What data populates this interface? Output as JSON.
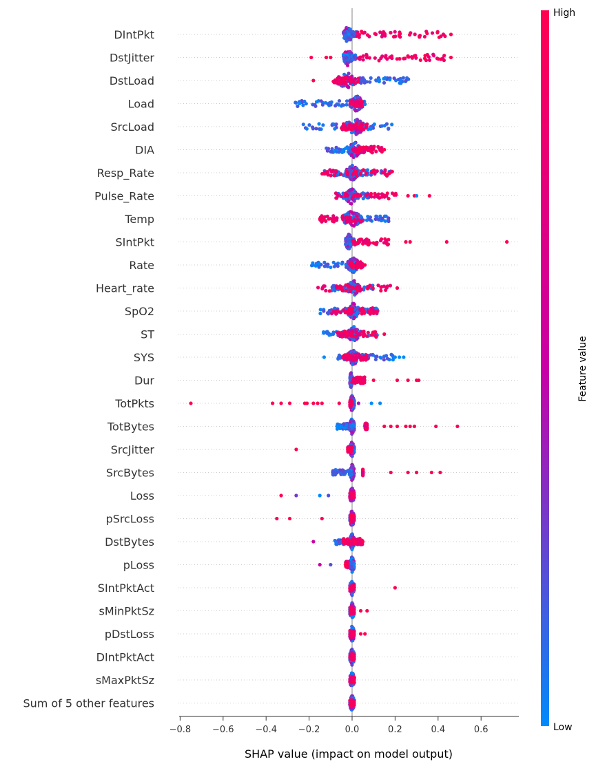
{
  "chart_data": {
    "type": "beeswarm",
    "xlabel": "SHAP value (impact on model output)",
    "xlim": [
      -0.83,
      0.8
    ],
    "xticks": [
      -0.8,
      -0.6,
      -0.4,
      -0.2,
      0.0,
      0.2,
      0.4,
      0.6
    ],
    "xtick_labels": [
      "−0.8",
      "−0.6",
      "−0.4",
      "−0.2",
      "0.0",
      "0.2",
      "0.4",
      "0.6"
    ],
    "colorbar": {
      "title": "Feature value",
      "high_label": "High",
      "low_label": "Low",
      "colors": {
        "low": "#008afb",
        "mid": "#c900a6",
        "high": "#ff0052"
      }
    },
    "features": [
      {
        "name": "DIntPkt",
        "core": [
          -0.04,
          0.0
        ],
        "low_range": [
          -0.04,
          0.02
        ],
        "high_range": [
          0.02,
          0.44
        ],
        "outliers": [
          [
            0.46,
            1
          ]
        ]
      },
      {
        "name": "DstJitter",
        "core": [
          -0.04,
          0.0
        ],
        "low_range": [
          -0.04,
          0.02
        ],
        "high_range": [
          0.02,
          0.44
        ],
        "outliers": [
          [
            -0.19,
            1
          ],
          [
            -0.12,
            1
          ],
          [
            -0.1,
            1
          ],
          [
            0.46,
            1
          ]
        ]
      },
      {
        "name": "DstLoad",
        "core": [
          -0.07,
          0.02
        ],
        "low_range": [
          0.0,
          0.27
        ],
        "high_range": [
          -0.09,
          0.03
        ],
        "outliers": [
          [
            -0.18,
            1
          ]
        ]
      },
      {
        "name": "Load",
        "core": [
          -0.01,
          0.05
        ],
        "low_range": [
          -0.27,
          0.07
        ],
        "high_range": [
          -0.01,
          0.05
        ],
        "outliers": []
      },
      {
        "name": "SrcLoad",
        "core": [
          -0.03,
          0.06
        ],
        "low_range": [
          -0.23,
          0.19
        ],
        "high_range": [
          -0.05,
          0.07
        ],
        "outliers": []
      },
      {
        "name": "DIA",
        "core": [
          -0.02,
          0.04
        ],
        "low_range": [
          -0.12,
          0.05
        ],
        "high_range": [
          0.0,
          0.14
        ],
        "outliers": [
          [
            0.15,
            1
          ]
        ]
      },
      {
        "name": "Resp_Rate",
        "core": [
          -0.03,
          0.03
        ],
        "low_range": [
          -0.14,
          0.21
        ],
        "high_range": [
          -0.14,
          0.2
        ],
        "outliers": []
      },
      {
        "name": "Pulse_Rate",
        "core": [
          -0.03,
          0.02
        ],
        "low_range": [
          -0.07,
          0.08
        ],
        "high_range": [
          -0.09,
          0.22
        ],
        "outliers": [
          [
            0.26,
            1
          ],
          [
            0.29,
            1
          ],
          [
            0.3,
            0
          ],
          [
            0.36,
            1
          ]
        ]
      },
      {
        "name": "Temp",
        "core": [
          -0.04,
          0.04
        ],
        "low_range": [
          -0.02,
          0.17
        ],
        "high_range": [
          -0.15,
          0.05
        ],
        "outliers": []
      },
      {
        "name": "SIntPkt",
        "core": [
          -0.03,
          0.0
        ],
        "low_range": [
          -0.03,
          0.01
        ],
        "high_range": [
          0.0,
          0.17
        ],
        "outliers": [
          [
            0.25,
            1
          ],
          [
            0.27,
            1
          ],
          [
            0.44,
            1
          ],
          [
            0.72,
            1
          ]
        ]
      },
      {
        "name": "Rate",
        "core": [
          -0.02,
          0.03
        ],
        "low_range": [
          -0.19,
          0.05
        ],
        "high_range": [
          -0.01,
          0.05
        ],
        "outliers": [
          [
            0.06,
            1
          ]
        ]
      },
      {
        "name": "Heart_rate",
        "core": [
          -0.02,
          0.03
        ],
        "low_range": [
          -0.1,
          0.1
        ],
        "high_range": [
          -0.16,
          0.18
        ],
        "outliers": [
          [
            0.21,
            1
          ]
        ]
      },
      {
        "name": "SpO2",
        "core": [
          -0.02,
          0.03
        ],
        "low_range": [
          -0.15,
          0.13
        ],
        "high_range": [
          -0.1,
          0.12
        ],
        "outliers": []
      },
      {
        "name": "ST",
        "core": [
          -0.02,
          0.03
        ],
        "low_range": [
          -0.14,
          0.12
        ],
        "high_range": [
          -0.07,
          0.12
        ],
        "outliers": [
          [
            0.15,
            1
          ]
        ]
      },
      {
        "name": "SYS",
        "core": [
          -0.02,
          0.03
        ],
        "low_range": [
          -0.07,
          0.2
        ],
        "high_range": [
          -0.05,
          0.07
        ],
        "outliers": [
          [
            -0.13,
            0
          ],
          [
            0.2,
            0
          ],
          [
            0.22,
            0
          ],
          [
            0.24,
            0
          ]
        ]
      },
      {
        "name": "Dur",
        "core": [
          -0.01,
          0.0
        ],
        "low_range": [
          -0.01,
          0.01
        ],
        "high_range": [
          0.0,
          0.06
        ],
        "outliers": [
          [
            0.1,
            1
          ],
          [
            0.21,
            1
          ],
          [
            0.26,
            1
          ],
          [
            0.3,
            1
          ],
          [
            0.31,
            1
          ]
        ]
      },
      {
        "name": "TotPkts",
        "core": [
          -0.01,
          0.01
        ],
        "low_range": [
          -0.01,
          0.01
        ],
        "high_range": [
          -0.01,
          0.0
        ],
        "outliers": [
          [
            -0.75,
            1
          ],
          [
            -0.37,
            1
          ],
          [
            -0.33,
            1
          ],
          [
            -0.29,
            1
          ],
          [
            -0.22,
            1
          ],
          [
            -0.21,
            1
          ],
          [
            -0.18,
            1
          ],
          [
            -0.16,
            1
          ],
          [
            -0.14,
            1
          ],
          [
            -0.06,
            1
          ],
          [
            0.03,
            0.4
          ],
          [
            0.09,
            0
          ],
          [
            0.13,
            0
          ]
        ]
      },
      {
        "name": "TotBytes",
        "core": [
          -0.01,
          0.01
        ],
        "low_range": [
          -0.07,
          0.01
        ],
        "high_range": [
          0.06,
          0.07
        ],
        "outliers": [
          [
            -0.07,
            0
          ],
          [
            -0.05,
            0
          ],
          [
            0.06,
            0.6
          ],
          [
            0.15,
            1
          ],
          [
            0.18,
            1
          ],
          [
            0.21,
            1
          ],
          [
            0.25,
            1
          ],
          [
            0.27,
            1
          ],
          [
            0.29,
            1
          ],
          [
            0.39,
            1
          ],
          [
            0.49,
            1
          ]
        ]
      },
      {
        "name": "SrcJitter",
        "core": [
          -0.01,
          0.01
        ],
        "low_range": [
          -0.01,
          0.01
        ],
        "high_range": [
          -0.02,
          0.0
        ],
        "outliers": [
          [
            -0.26,
            1
          ],
          [
            -0.02,
            1
          ]
        ]
      },
      {
        "name": "SrcBytes",
        "core": [
          -0.01,
          0.01
        ],
        "low_range": [
          -0.09,
          0.0
        ],
        "high_range": [
          0.05,
          0.05
        ],
        "outliers": [
          [
            -0.09,
            0.2
          ],
          [
            -0.07,
            0.2
          ],
          [
            -0.04,
            0.2
          ],
          [
            0.05,
            0.6
          ],
          [
            0.18,
            1
          ],
          [
            0.26,
            1
          ],
          [
            0.3,
            1
          ],
          [
            0.37,
            1
          ],
          [
            0.41,
            1
          ]
        ]
      },
      {
        "name": "Loss",
        "core": [
          -0.01,
          0.01
        ],
        "low_range": [
          -0.01,
          0.01
        ],
        "high_range": [
          -0.01,
          0.01
        ],
        "outliers": [
          [
            -0.33,
            1
          ],
          [
            -0.26,
            0.3
          ],
          [
            -0.15,
            0
          ],
          [
            -0.11,
            0.2
          ]
        ]
      },
      {
        "name": "pSrcLoss",
        "core": [
          -0.01,
          0.01
        ],
        "low_range": [
          -0.01,
          0.01
        ],
        "high_range": [
          -0.01,
          0.01
        ],
        "outliers": [
          [
            -0.35,
            1
          ],
          [
            -0.29,
            1
          ],
          [
            -0.14,
            1
          ]
        ]
      },
      {
        "name": "DstBytes",
        "core": [
          -0.01,
          0.01
        ],
        "low_range": [
          -0.08,
          0.04
        ],
        "high_range": [
          -0.04,
          0.05
        ],
        "outliers": [
          [
            -0.18,
            0.5
          ],
          [
            0.05,
            1
          ]
        ]
      },
      {
        "name": "pLoss",
        "core": [
          -0.01,
          0.01
        ],
        "low_range": [
          -0.01,
          0.01
        ],
        "high_range": [
          -0.03,
          -0.02
        ],
        "outliers": [
          [
            -0.15,
            0.5
          ],
          [
            -0.1,
            0.2
          ],
          [
            -0.03,
            1
          ]
        ]
      },
      {
        "name": "SIntPktAct",
        "core": [
          -0.01,
          0.01
        ],
        "low_range": [
          -0.01,
          0.01
        ],
        "high_range": [
          -0.01,
          0.01
        ],
        "outliers": [
          [
            0.2,
            1
          ]
        ]
      },
      {
        "name": "sMinPktSz",
        "core": [
          -0.01,
          0.01
        ],
        "low_range": [
          -0.01,
          0.01
        ],
        "high_range": [
          -0.01,
          0.01
        ],
        "outliers": [
          [
            0.04,
            1
          ],
          [
            0.07,
            1
          ]
        ]
      },
      {
        "name": "pDstLoss",
        "core": [
          -0.01,
          0.01
        ],
        "low_range": [
          -0.01,
          0.01
        ],
        "high_range": [
          -0.01,
          0.01
        ],
        "outliers": [
          [
            0.04,
            1
          ],
          [
            0.06,
            1
          ]
        ]
      },
      {
        "name": "DIntPktAct",
        "core": [
          -0.01,
          0.01
        ],
        "low_range": [
          -0.01,
          0.01
        ],
        "high_range": [
          -0.01,
          0.01
        ],
        "outliers": []
      },
      {
        "name": "sMaxPktSz",
        "core": [
          -0.01,
          0.01
        ],
        "low_range": [
          -0.01,
          0.01
        ],
        "high_range": [
          -0.01,
          0.01
        ],
        "outliers": []
      },
      {
        "name": "Sum of 5 other features",
        "core": [
          -0.01,
          0.01
        ],
        "low_range": [
          -0.01,
          0.01
        ],
        "high_range": [
          -0.01,
          0.01
        ],
        "outliers": []
      }
    ]
  }
}
